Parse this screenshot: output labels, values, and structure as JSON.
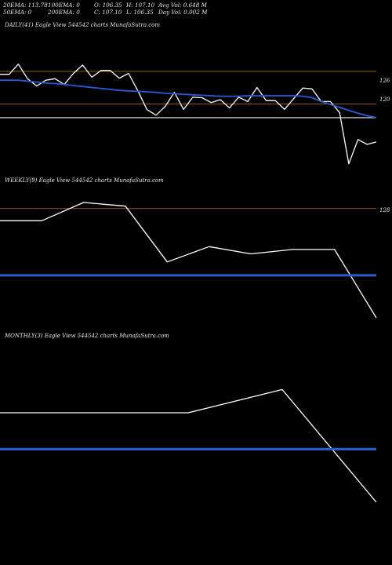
{
  "stats": {
    "ema20": "20EMA: 113.78",
    "ema50": "50EMA: 0",
    "ema100": "100EMA: 0",
    "ema200": "200EMA: 0",
    "open": "O: 106.35",
    "close": "C: 107.10",
    "high": "H: 107.10",
    "low": "L: 106.35",
    "avg_vol": "Avg Vol: 0.648  M",
    "day_vol": "Day Vol: 0.002  M"
  },
  "colors": {
    "background": "#000000",
    "price": "#ffffff",
    "ema": "#2a5bd7",
    "level": "#8a5a1a",
    "support": "#c8c8c8"
  },
  "chart_data": [
    {
      "type": "line",
      "title": "DAILY(41) Eagle  View  544542  charts MunafaSutra.com",
      "y_tick_labels": [
        "126",
        "120"
      ],
      "series": [
        {
          "role": "price",
          "values": [
            124.4,
            124.4,
            126.5,
            123.5,
            122.0,
            123.2,
            123.5,
            122.3,
            124.6,
            126.3,
            123.8,
            125.2,
            125.2,
            123.6,
            124.6,
            121.1,
            117.2,
            116.0,
            117.8,
            120.7,
            117.2,
            119.7,
            119.6,
            118.6,
            119.2,
            117.5,
            119.7,
            118.8,
            121.7,
            119.0,
            119.0,
            117.2,
            119.4,
            121.6,
            121.4,
            118.8,
            118.8,
            116.5,
            106.0,
            111.0,
            110.0,
            110.5
          ]
        },
        {
          "role": "ema",
          "values": [
            123.2,
            123.2,
            123.2,
            123.0,
            122.8,
            122.6,
            122.5,
            122.3,
            122.1,
            121.9,
            121.7,
            121.5,
            121.3,
            121.1,
            121.0,
            120.9,
            120.8,
            120.7,
            120.5,
            120.4,
            120.3,
            120.2,
            120.1,
            120.0,
            119.9,
            119.9,
            119.9,
            120.0,
            120.0,
            120.0,
            120.0,
            120.0,
            120.0,
            119.9,
            119.6,
            118.8,
            118.2,
            117.6,
            117.0,
            116.4,
            115.9,
            115.5
          ]
        }
      ],
      "levels": [
        125.0,
        118.3,
        115.5
      ]
    },
    {
      "type": "line",
      "title": "WEEKLY(9) Eagle  View  544542  charts MunafaSutra.com",
      "y_tick_labels": [
        "128"
      ],
      "series": [
        {
          "role": "price",
          "values": [
            124.0,
            124.0,
            128.5,
            127.6,
            113.8,
            117.6,
            115.8,
            116.9,
            116.9,
            100.0
          ]
        },
        {
          "role": "ema",
          "values": [
            110.5,
            110.5,
            110.5,
            110.5,
            110.5,
            110.5,
            110.5,
            110.5,
            110.5,
            110.5
          ]
        }
      ],
      "levels": [
        127.0
      ]
    },
    {
      "type": "line",
      "title": "MONTHLY(3) Eagle  View  544542  charts MunafaSutra.com",
      "y_tick_labels": [],
      "series": [
        {
          "role": "price",
          "values": [
            121.0,
            121.0,
            121.0,
            124.5,
            107.5
          ]
        },
        {
          "role": "ema",
          "values": [
            115.5,
            115.5,
            115.5,
            115.5,
            115.5
          ]
        }
      ],
      "levels": []
    }
  ]
}
